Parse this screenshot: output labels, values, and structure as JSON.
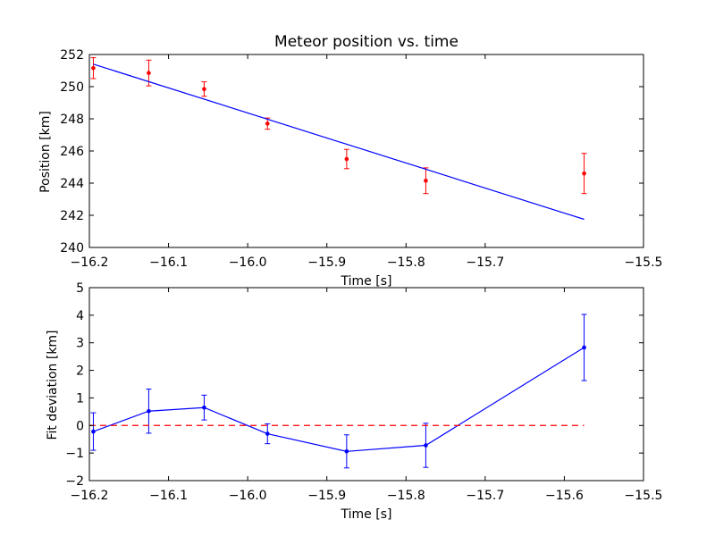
{
  "chart_data": [
    {
      "type": "scatter",
      "title": "Meteor position vs. time",
      "xlabel": "Time [s]",
      "ylabel": "Position [km]",
      "xlim": [
        -16.2,
        -15.5
      ],
      "ylim": [
        240,
        252
      ],
      "xticks": [
        -16.2,
        -16.1,
        -16.0,
        -15.9,
        -15.8,
        -15.7,
        -15.5
      ],
      "xtick_labels": [
        "−16.2",
        "−16.1",
        "−16.0",
        "−15.9",
        "−15.8",
        "−15.7",
        "−15.5"
      ],
      "yticks": [
        240,
        242,
        244,
        246,
        248,
        250,
        252
      ],
      "ytick_labels": [
        "240",
        "242",
        "244",
        "246",
        "248",
        "250",
        "252"
      ],
      "grid": false,
      "series": [
        {
          "kind": "errorbar",
          "color": "#ff0000",
          "x": [
            -16.195,
            -16.125,
            -16.055,
            -15.975,
            -15.875,
            -15.775,
            -15.575
          ],
          "y": [
            251.15,
            250.85,
            249.85,
            247.7,
            245.5,
            244.15,
            244.6
          ],
          "yerr": [
            0.65,
            0.8,
            0.45,
            0.35,
            0.6,
            0.8,
            1.25
          ]
        },
        {
          "kind": "line",
          "color": "#0000ff",
          "x": [
            -16.195,
            -15.575
          ],
          "y": [
            251.4,
            241.75
          ]
        }
      ]
    },
    {
      "type": "line",
      "title": "",
      "xlabel": "Time [s]",
      "ylabel": "Fit deviation [km]",
      "xlim": [
        -16.2,
        -15.5
      ],
      "ylim": [
        -2,
        5
      ],
      "xticks": [
        -16.2,
        -16.1,
        -16.0,
        -15.9,
        -15.8,
        -15.7,
        -15.6,
        -15.5
      ],
      "xtick_labels": [
        "−16.2",
        "−16.1",
        "−16.0",
        "−15.9",
        "−15.8",
        "−15.7",
        "−15.6",
        "−15.5"
      ],
      "yticks": [
        -2,
        -1,
        0,
        1,
        2,
        3,
        4,
        5
      ],
      "ytick_labels": [
        "−2",
        "−1",
        "0",
        "1",
        "2",
        "3",
        "4",
        "5"
      ],
      "grid": false,
      "series": [
        {
          "kind": "errorbar-line",
          "color": "#0000ff",
          "x": [
            -16.195,
            -16.125,
            -16.055,
            -15.975,
            -15.875,
            -15.775,
            -15.575
          ],
          "y": [
            -0.22,
            0.52,
            0.65,
            -0.3,
            -0.94,
            -0.72,
            2.83
          ],
          "yerr": [
            0.68,
            0.8,
            0.45,
            0.36,
            0.6,
            0.8,
            1.2
          ]
        },
        {
          "kind": "dashed-line",
          "color": "#ff0000",
          "x": [
            -16.2,
            -15.575
          ],
          "y": [
            0,
            0
          ]
        }
      ]
    }
  ]
}
